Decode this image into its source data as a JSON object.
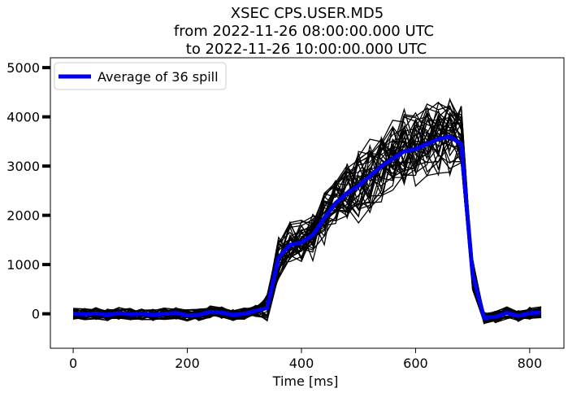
{
  "chart_data": {
    "type": "line",
    "title_lines": [
      "XSEC CPS.USER.MD5",
      "from 2022-11-26 08:00:00.000 UTC",
      "to 2022-11-26 10:00:00.000 UTC"
    ],
    "xlabel": "Time [ms]",
    "ylabel": "",
    "xlim": [
      -40,
      860
    ],
    "ylim": [
      -700,
      5200
    ],
    "xticks": [
      0,
      200,
      400,
      600,
      800
    ],
    "yticks": [
      0,
      1000,
      2000,
      3000,
      4000,
      5000
    ],
    "grid": false,
    "legend": {
      "position": "top-left",
      "entries": [
        "Average of 36 spill"
      ]
    },
    "colors": {
      "individual": "#000000",
      "average": "#0000ee"
    },
    "x": [
      0,
      20,
      40,
      60,
      80,
      100,
      120,
      140,
      160,
      180,
      200,
      220,
      240,
      260,
      280,
      300,
      320,
      340,
      360,
      380,
      400,
      420,
      440,
      460,
      480,
      500,
      520,
      540,
      560,
      580,
      600,
      620,
      640,
      660,
      680,
      700,
      720,
      740,
      760,
      780,
      800,
      820
    ],
    "series": [
      {
        "name": "Average of 36 spill",
        "values": [
          0,
          -10,
          5,
          -20,
          10,
          -10,
          0,
          -20,
          0,
          15,
          -30,
          -20,
          40,
          25,
          -20,
          0,
          60,
          120,
          1150,
          1400,
          1450,
          1600,
          1950,
          2250,
          2450,
          2600,
          2800,
          3000,
          3150,
          3300,
          3350,
          3450,
          3550,
          3600,
          3450,
          800,
          -80,
          -60,
          20,
          -40,
          10,
          30
        ]
      }
    ],
    "individual_spill_count": 36
  }
}
